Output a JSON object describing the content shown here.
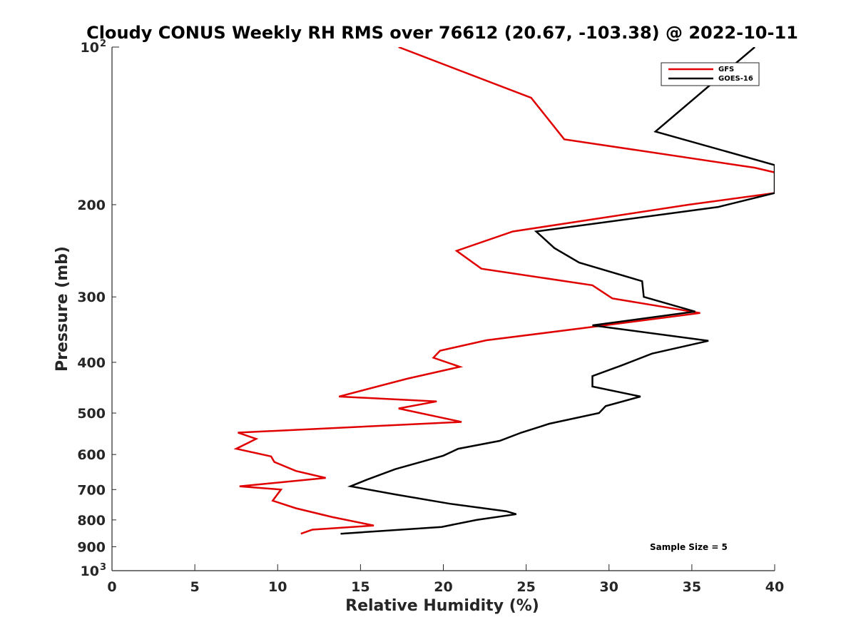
{
  "chart_data": {
    "type": "line",
    "title": "Cloudy CONUS Weekly RH RMS over 76612 (20.67, -103.38) @ 2022-10-11",
    "xlabel": "Relative Humidity (%)",
    "ylabel": "Pressure (mb)",
    "xlim": [
      0,
      40
    ],
    "ylim": [
      1000,
      100
    ],
    "yscale": "log",
    "xticks": [
      "0",
      "5",
      "10",
      "15",
      "20",
      "25",
      "30",
      "35",
      "40"
    ],
    "yticks_major": [
      "10",
      "10"
    ],
    "ytick_major_exponents": [
      "2",
      "3"
    ],
    "yticks_minor": [
      "200",
      "300",
      "400",
      "500",
      "600",
      "700",
      "800",
      "900"
    ],
    "legend_position": "top-right",
    "annotation": "Sample Size = 5",
    "series": [
      {
        "name": "GFS",
        "color": "#e00000",
        "points": [
          [
            17.3,
            100
          ],
          [
            25.3,
            125
          ],
          [
            27.3,
            150
          ],
          [
            38.8,
            170
          ],
          [
            40.5,
            175
          ],
          [
            40.0,
            190
          ],
          [
            34.8,
            200
          ],
          [
            24.2,
            225
          ],
          [
            20.8,
            245
          ],
          [
            22.3,
            265
          ],
          [
            29.0,
            285
          ],
          [
            30.2,
            302
          ],
          [
            35.5,
            322
          ],
          [
            28.5,
            344
          ],
          [
            22.6,
            363
          ],
          [
            19.8,
            380
          ],
          [
            19.4,
            392
          ],
          [
            21.0,
            408
          ],
          [
            17.8,
            430
          ],
          [
            13.7,
            465
          ],
          [
            19.6,
            475
          ],
          [
            17.3,
            490
          ],
          [
            21.1,
            520
          ],
          [
            7.6,
            545
          ],
          [
            8.7,
            560
          ],
          [
            7.5,
            585
          ],
          [
            9.6,
            605
          ],
          [
            9.8,
            620
          ],
          [
            11.1,
            645
          ],
          [
            12.9,
            665
          ],
          [
            7.7,
            690
          ],
          [
            10.2,
            700
          ],
          [
            9.7,
            735
          ],
          [
            11.1,
            760
          ],
          [
            13.3,
            790
          ],
          [
            15.8,
            820
          ],
          [
            12.1,
            835
          ],
          [
            11.4,
            850
          ]
        ]
      },
      {
        "name": "GOES-16",
        "color": "#000000",
        "points": [
          [
            38.8,
            100
          ],
          [
            32.8,
            145
          ],
          [
            40.0,
            168
          ],
          [
            40.0,
            190
          ],
          [
            36.6,
            202
          ],
          [
            25.6,
            225
          ],
          [
            26.7,
            242
          ],
          [
            28.2,
            258
          ],
          [
            32.0,
            280
          ],
          [
            32.1,
            300
          ],
          [
            35.2,
            320
          ],
          [
            29.0,
            340
          ],
          [
            36.0,
            364
          ],
          [
            32.6,
            385
          ],
          [
            30.8,
            405
          ],
          [
            29.0,
            425
          ],
          [
            29.0,
            445
          ],
          [
            31.9,
            465
          ],
          [
            29.8,
            485
          ],
          [
            29.4,
            500
          ],
          [
            26.4,
            524
          ],
          [
            24.7,
            545
          ],
          [
            23.4,
            565
          ],
          [
            20.9,
            585
          ],
          [
            20.0,
            603
          ],
          [
            17.1,
            640
          ],
          [
            15.4,
            670
          ],
          [
            14.4,
            690
          ],
          [
            17.1,
            715
          ],
          [
            20.4,
            745
          ],
          [
            23.8,
            770
          ],
          [
            24.4,
            780
          ],
          [
            22.0,
            800
          ],
          [
            19.9,
            825
          ],
          [
            13.8,
            850
          ]
        ]
      }
    ]
  }
}
